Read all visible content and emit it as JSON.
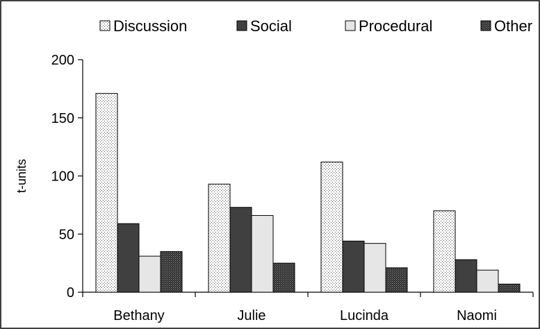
{
  "chart_data": {
    "type": "bar",
    "categories": [
      "Bethany",
      "Julie",
      "Lucinda",
      "Naomi"
    ],
    "series": [
      {
        "name": "Discussion",
        "values": [
          171,
          93,
          112,
          70
        ],
        "pattern": "dots-light"
      },
      {
        "name": "Social",
        "values": [
          59,
          73,
          44,
          28
        ],
        "pattern": "solid-dark"
      },
      {
        "name": "Procedural",
        "values": [
          31,
          66,
          42,
          19
        ],
        "pattern": "solid-light"
      },
      {
        "name": "Other",
        "values": [
          35,
          25,
          21,
          7
        ],
        "pattern": "dots-dense"
      }
    ],
    "title": "",
    "xlabel": "",
    "ylabel": "t-units",
    "ylim": [
      0,
      200
    ],
    "yticks": [
      0,
      50,
      100,
      150,
      200
    ],
    "grid": false,
    "legend_position": "top",
    "colors": {
      "social": "#404040",
      "procedural": "#e6e6e6",
      "outline": "#000000",
      "background": "#ffffff"
    }
  }
}
